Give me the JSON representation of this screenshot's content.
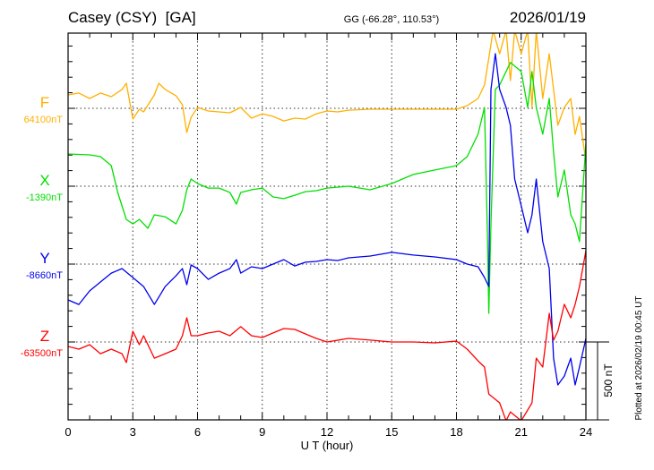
{
  "chart_data": {
    "type": "line",
    "title": "Casey (CSY)  [GA]",
    "coords": "GG (-66.28°, 110.53°)",
    "date": "2026/01/19",
    "xlabel": "U T (hour)",
    "xlim": [
      0,
      24
    ],
    "xticks": [
      "0",
      "3",
      "6",
      "9",
      "12",
      "15",
      "18",
      "21",
      "24"
    ],
    "scale_label": "500 nT",
    "scale_nT": 500,
    "footer": "Plotted at 2026/02/19 00:45 UT",
    "grid": true,
    "series": [
      {
        "name": "F",
        "baseline": "64100nT",
        "color": "#ffb000",
        "x": [
          0,
          0.5,
          1,
          1.5,
          2,
          2.5,
          2.7,
          3,
          3.3,
          3.5,
          4,
          4.2,
          4.5,
          5,
          5.3,
          5.5,
          5.7,
          6,
          6.5,
          7,
          7.5,
          8,
          8.5,
          9,
          9.5,
          10,
          10.5,
          11,
          11.5,
          12,
          12.5,
          13,
          14,
          15,
          16,
          17,
          18,
          18.5,
          19,
          19.3,
          19.5,
          19.7,
          20,
          20.3,
          20.5,
          20.7,
          21,
          21.3,
          21.5,
          21.7,
          22,
          22.3,
          22.5,
          22.7,
          23,
          23.3,
          23.5,
          23.7,
          24
        ],
        "y": [
          86,
          98,
          63,
          98,
          75,
          121,
          161,
          -69,
          -6,
          -23,
          86,
          161,
          121,
          81,
          23,
          -155,
          -58,
          6,
          -17,
          -23,
          -29,
          6,
          -63,
          -35,
          -52,
          -81,
          -63,
          -69,
          -35,
          -17,
          -23,
          -12,
          -6,
          -6,
          -6,
          -6,
          -6,
          17,
          63,
          150,
          322,
          500,
          350,
          500,
          178,
          500,
          350,
          500,
          6,
          500,
          63,
          350,
          121,
          -109,
          6,
          63,
          -167,
          -52,
          -340
        ]
      },
      {
        "name": "X",
        "baseline": "-1390nT",
        "color": "#00e000",
        "x": [
          0,
          1,
          1.5,
          2,
          2.3,
          2.7,
          3,
          3.3,
          3.7,
          4,
          4.5,
          5,
          5.3,
          5.5,
          5.7,
          6,
          6.5,
          7,
          7.5,
          7.8,
          8,
          8.5,
          9,
          9.5,
          10,
          10.5,
          11,
          11.5,
          12,
          13,
          14,
          15,
          16,
          17,
          18,
          18.5,
          19,
          19.3,
          19.45,
          19.5,
          19.6,
          19.8,
          20,
          20.5,
          21,
          21.3,
          21.5,
          21.7,
          22,
          22.3,
          22.5,
          22.7,
          23,
          23.3,
          23.5,
          23.7,
          24
        ],
        "y": [
          207,
          201,
          190,
          132,
          -40,
          -213,
          -242,
          -213,
          -270,
          -184,
          -196,
          -242,
          -155,
          -23,
          46,
          17,
          -12,
          -12,
          -40,
          -115,
          -40,
          -23,
          -12,
          -69,
          -80,
          -58,
          -35,
          -29,
          -12,
          0,
          -23,
          17,
          75,
          104,
          132,
          190,
          334,
          506,
          -400,
          -816,
          -242,
          621,
          650,
          794,
          736,
          506,
          736,
          506,
          334,
          564,
          219,
          -69,
          104,
          -184,
          -242,
          -356,
          276
        ]
      },
      {
        "name": "Y",
        "baseline": "-8660nT",
        "color": "#0000ee",
        "x": [
          0,
          0.5,
          1,
          1.5,
          2,
          2.5,
          3,
          3.5,
          4,
          4.5,
          5,
          5.3,
          5.5,
          5.7,
          6,
          6.5,
          7,
          7.5,
          7.8,
          8,
          8.5,
          9,
          9.5,
          10,
          10.5,
          11,
          11.5,
          12,
          12.5,
          13,
          14,
          15,
          16,
          17,
          18,
          18.5,
          19,
          19.3,
          19.5,
          19.6,
          19.8,
          20,
          20.3,
          20.5,
          20.7,
          21,
          21.3,
          21.5,
          21.7,
          22,
          22.3,
          22.5,
          22.7,
          23,
          23.3,
          23.5,
          23.7,
          24
        ],
        "y": [
          -230,
          -259,
          -172,
          -115,
          -58,
          -29,
          -86,
          -144,
          -259,
          -144,
          -75,
          -29,
          -132,
          -6,
          -29,
          -98,
          -58,
          -29,
          29,
          -58,
          -17,
          -29,
          0,
          29,
          -12,
          12,
          17,
          29,
          23,
          40,
          52,
          75,
          58,
          46,
          29,
          0,
          -17,
          -86,
          -144,
          1121,
          1351,
          1121,
          1006,
          891,
          546,
          374,
          201,
          316,
          546,
          144,
          -29,
          -604,
          -776,
          -719,
          -604,
          -776,
          -661,
          -477
        ]
      },
      {
        "name": "Z",
        "baseline": "-63500nT",
        "color": "#ff0000",
        "x": [
          0,
          0.5,
          1,
          1.5,
          2,
          2.5,
          2.7,
          3,
          3.3,
          3.5,
          4,
          4.5,
          5,
          5.3,
          5.5,
          5.7,
          6,
          6.5,
          7,
          7.5,
          8,
          8.5,
          9,
          9.5,
          10,
          10.5,
          11,
          11.5,
          12,
          13,
          14,
          15,
          16,
          17,
          18,
          18.5,
          19,
          19.3,
          19.5,
          20,
          20.3,
          20.5,
          21,
          21.5,
          21.7,
          22,
          22.3,
          22.5,
          22.7,
          23,
          23.3,
          23.5,
          23.7,
          24
        ],
        "y": [
          -29,
          -46,
          -17,
          -75,
          -46,
          -75,
          -132,
          69,
          -17,
          40,
          -104,
          -75,
          -46,
          40,
          155,
          40,
          40,
          58,
          69,
          40,
          98,
          40,
          29,
          58,
          86,
          81,
          52,
          23,
          0,
          23,
          12,
          0,
          0,
          -6,
          6,
          -46,
          -121,
          -161,
          -334,
          -391,
          -506,
          -449,
          -506,
          -391,
          -104,
          -161,
          184,
          12,
          69,
          242,
          155,
          242,
          356,
          587
        ]
      }
    ]
  }
}
